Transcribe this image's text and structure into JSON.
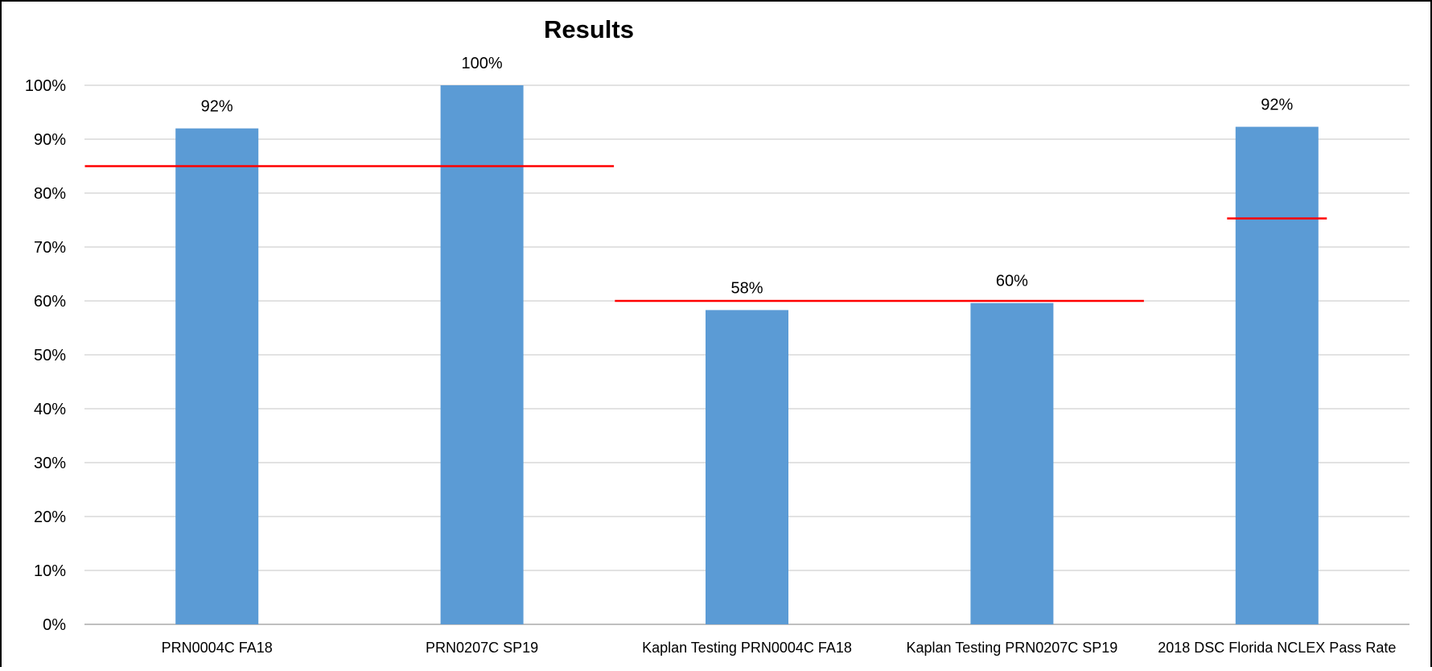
{
  "chart_data": {
    "type": "bar",
    "title": "Results",
    "categories": [
      "PRN0004C FA18",
      "PRN0207C SP19",
      "Kaplan Testing PRN0004C FA18",
      "Kaplan Testing PRN0207C SP19",
      "2018 DSC Florida NCLEX Pass Rate"
    ],
    "values": [
      92,
      100,
      58.3,
      59.6,
      92.3
    ],
    "data_labels": [
      "92%",
      "100%",
      "58%",
      "60%",
      "92%"
    ],
    "ylim": [
      0,
      100
    ],
    "yticks": [
      "0%",
      "10%",
      "20%",
      "30%",
      "40%",
      "50%",
      "60%",
      "70%",
      "80%",
      "90%",
      "100%"
    ],
    "grid": true,
    "bar_color": "#5B9BD5",
    "benchmarks": [
      {
        "value": 85,
        "from_category": 0,
        "to_category": 1,
        "color": "#FF0000"
      },
      {
        "value": 60,
        "from_category": 2,
        "to_category": 3,
        "color": "#FF0000"
      },
      {
        "value": 75.3,
        "from_category": 4,
        "to_category": 4,
        "color": "#FF0000"
      }
    ]
  }
}
